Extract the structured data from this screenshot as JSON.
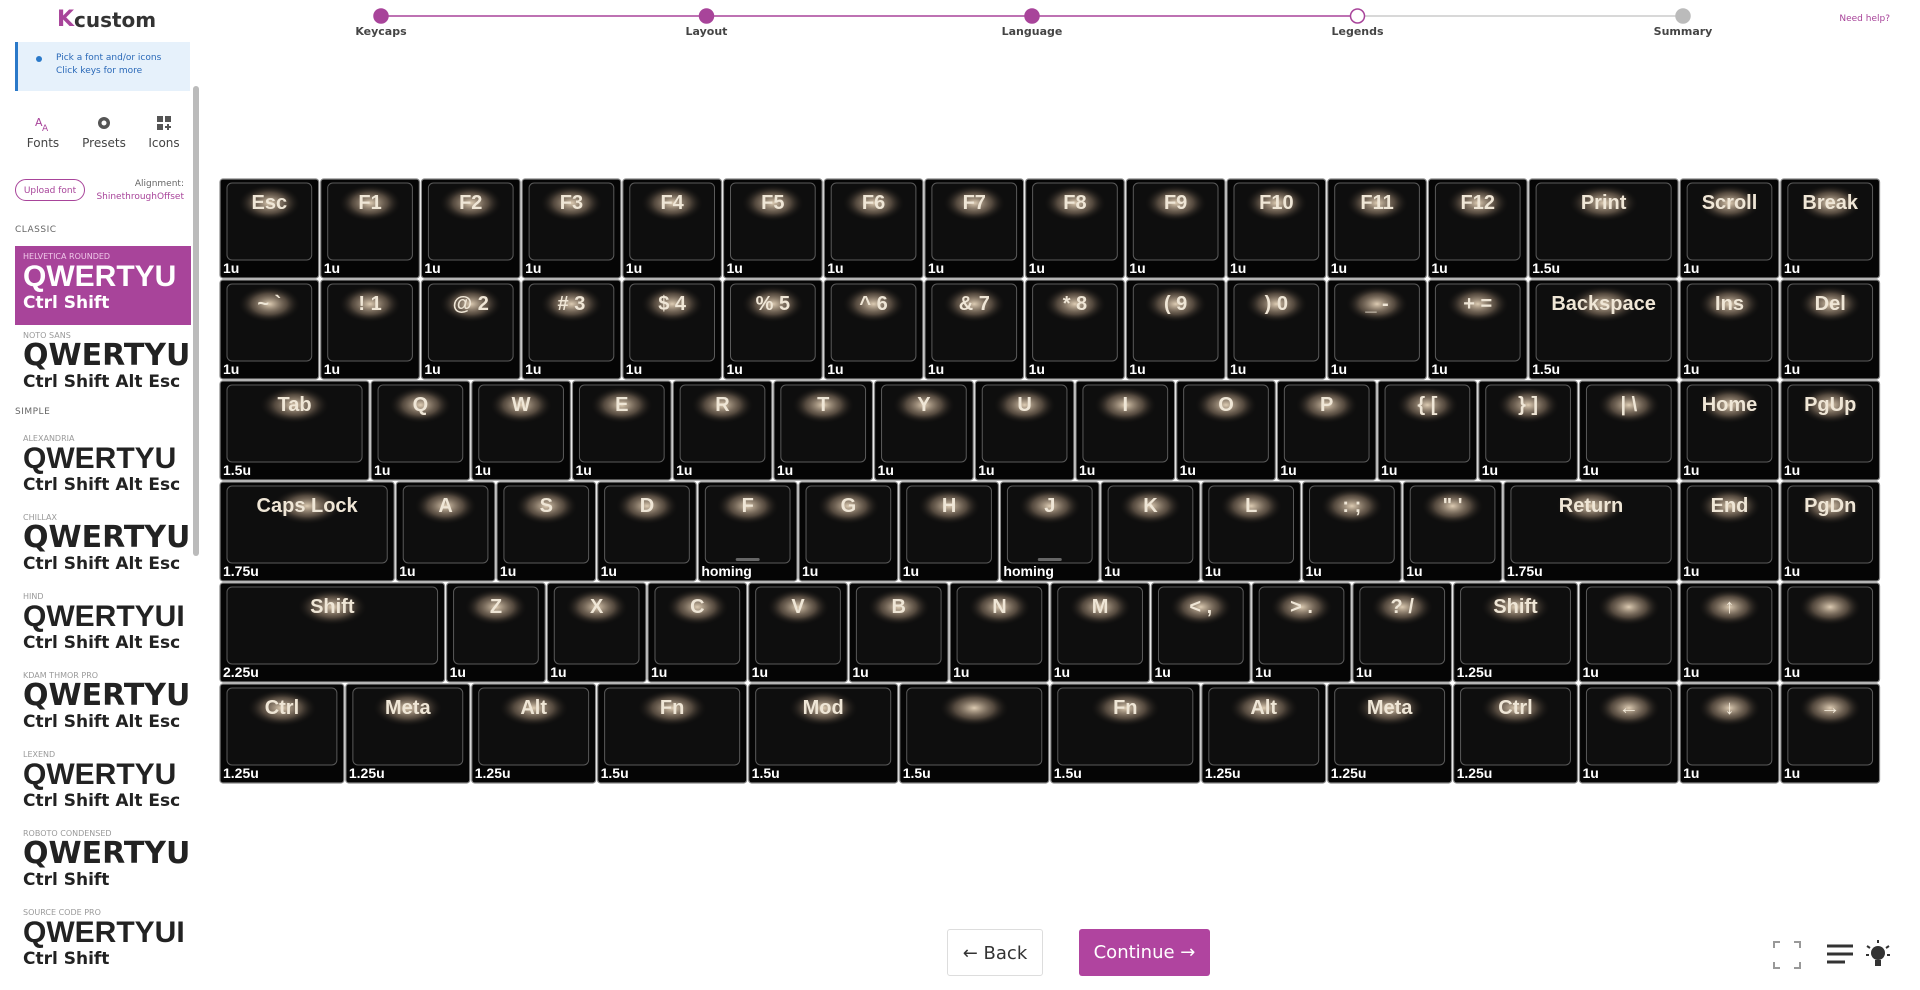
{
  "header": {
    "logo": "custom",
    "help": "Need help?",
    "steps": [
      {
        "label": "Keycaps",
        "state": "done"
      },
      {
        "label": "Layout",
        "state": "done"
      },
      {
        "label": "Language",
        "state": "done"
      },
      {
        "label": "Legends",
        "state": "current"
      },
      {
        "label": "Summary",
        "state": "todo"
      }
    ]
  },
  "sidebar": {
    "info": [
      "Pick a font and/or icons",
      "Click keys for more"
    ],
    "tabs": [
      {
        "label": "Fonts",
        "active": true
      },
      {
        "label": "Presets",
        "active": false
      },
      {
        "label": "Icons",
        "active": false
      }
    ],
    "upload": "Upload font",
    "alignment_label": "Alignment:",
    "alignment_value": "ShinethroughOffset",
    "sections": [
      {
        "title": "CLASSIC",
        "fonts": [
          {
            "name": "HELVETICA ROUNDED",
            "sample": "QWERTYU",
            "sample_small": "Ctrl Shift",
            "selected": true
          },
          {
            "name": "NOTO SANS",
            "sample": "QWERTYUI",
            "sample_small": "Ctrl Shift Alt Esc",
            "selected": false
          }
        ]
      },
      {
        "title": "SIMPLE",
        "fonts": [
          {
            "name": "ALEXANDRIA",
            "sample": "QWERTYU",
            "sample_small": "Ctrl Shift Alt Esc",
            "selected": false
          },
          {
            "name": "CHILLAX",
            "sample": "QWERTYU",
            "sample_small": "Ctrl Shift Alt Esc",
            "selected": false
          },
          {
            "name": "HIND",
            "sample": "QWERTYUI",
            "sample_small": "Ctrl Shift Alt Esc",
            "selected": false
          },
          {
            "name": "KDAM THMOR PRO",
            "sample": "QWERTYUI",
            "sample_small": "Ctrl Shift Alt Esc",
            "selected": false
          },
          {
            "name": "LEXEND",
            "sample": "QWERTYU",
            "sample_small": "Ctrl Shift Alt Esc",
            "selected": false
          },
          {
            "name": "ROBOTO CONDENSED",
            "sample": "QWERTYUIOP",
            "sample_small": "Ctrl Shift",
            "selected": false
          },
          {
            "name": "SOURCE CODE PRO",
            "sample": "QWERTYUI",
            "sample_small": "Ctrl Shift",
            "selected": false
          }
        ]
      }
    ]
  },
  "keyboard": {
    "rows": [
      [
        {
          "legend": "Esc",
          "size": "1u"
        },
        {
          "legend": "F1",
          "size": "1u"
        },
        {
          "legend": "F2",
          "size": "1u"
        },
        {
          "legend": "F3",
          "size": "1u"
        },
        {
          "legend": "F4",
          "size": "1u"
        },
        {
          "legend": "F5",
          "size": "1u"
        },
        {
          "legend": "F6",
          "size": "1u"
        },
        {
          "legend": "F7",
          "size": "1u"
        },
        {
          "legend": "F8",
          "size": "1u"
        },
        {
          "legend": "F9",
          "size": "1u"
        },
        {
          "legend": "F10",
          "size": "1u"
        },
        {
          "legend": "F11",
          "size": "1u"
        },
        {
          "legend": "F12",
          "size": "1u"
        },
        {
          "legend": "Print",
          "size": "1.5u"
        },
        {
          "legend": "Scroll",
          "size": "1u"
        },
        {
          "legend": "Break",
          "size": "1u"
        }
      ],
      [
        {
          "legend": "~ `",
          "size": "1u"
        },
        {
          "legend": "! 1",
          "size": "1u"
        },
        {
          "legend": "@ 2",
          "size": "1u"
        },
        {
          "legend": "# 3",
          "size": "1u"
        },
        {
          "legend": "$ 4",
          "size": "1u"
        },
        {
          "legend": "% 5",
          "size": "1u"
        },
        {
          "legend": "^ 6",
          "size": "1u"
        },
        {
          "legend": "& 7",
          "size": "1u"
        },
        {
          "legend": "* 8",
          "size": "1u"
        },
        {
          "legend": "( 9",
          "size": "1u"
        },
        {
          "legend": ") 0",
          "size": "1u"
        },
        {
          "legend": "_ -",
          "size": "1u"
        },
        {
          "legend": "+ =",
          "size": "1u"
        },
        {
          "legend": "Backspace",
          "size": "1.5u"
        },
        {
          "legend": "Ins",
          "size": "1u"
        },
        {
          "legend": "Del",
          "size": "1u"
        }
      ],
      [
        {
          "legend": "Tab",
          "size": "1.5u"
        },
        {
          "legend": "Q",
          "size": "1u"
        },
        {
          "legend": "W",
          "size": "1u"
        },
        {
          "legend": "E",
          "size": "1u"
        },
        {
          "legend": "R",
          "size": "1u"
        },
        {
          "legend": "T",
          "size": "1u"
        },
        {
          "legend": "Y",
          "size": "1u"
        },
        {
          "legend": "U",
          "size": "1u"
        },
        {
          "legend": "I",
          "size": "1u"
        },
        {
          "legend": "O",
          "size": "1u"
        },
        {
          "legend": "P",
          "size": "1u"
        },
        {
          "legend": "{ [",
          "size": "1u"
        },
        {
          "legend": "} ]",
          "size": "1u"
        },
        {
          "legend": "| \\",
          "size": "1u"
        },
        {
          "legend": "Home",
          "size": "1u"
        },
        {
          "legend": "PgUp",
          "size": "1u"
        }
      ],
      [
        {
          "legend": "Caps Lock",
          "size": "1.75u"
        },
        {
          "legend": "A",
          "size": "1u"
        },
        {
          "legend": "S",
          "size": "1u"
        },
        {
          "legend": "D",
          "size": "1u"
        },
        {
          "legend": "F",
          "size": "homing",
          "homing": true
        },
        {
          "legend": "G",
          "size": "1u"
        },
        {
          "legend": "H",
          "size": "1u"
        },
        {
          "legend": "J",
          "size": "homing",
          "homing": true
        },
        {
          "legend": "K",
          "size": "1u"
        },
        {
          "legend": "L",
          "size": "1u"
        },
        {
          "legend": ": ;",
          "size": "1u"
        },
        {
          "legend": "\" '",
          "size": "1u"
        },
        {
          "legend": "Return",
          "size": "1.75u"
        },
        {
          "legend": "End",
          "size": "1u"
        },
        {
          "legend": "PgDn",
          "size": "1u"
        }
      ],
      [
        {
          "legend": "Shift",
          "size": "2.25u"
        },
        {
          "legend": "Z",
          "size": "1u"
        },
        {
          "legend": "X",
          "size": "1u"
        },
        {
          "legend": "C",
          "size": "1u"
        },
        {
          "legend": "V",
          "size": "1u"
        },
        {
          "legend": "B",
          "size": "1u"
        },
        {
          "legend": "N",
          "size": "1u"
        },
        {
          "legend": "M",
          "size": "1u"
        },
        {
          "legend": "< ,",
          "size": "1u"
        },
        {
          "legend": "> .",
          "size": "1u"
        },
        {
          "legend": "? /",
          "size": "1u"
        },
        {
          "legend": "Shift",
          "size": "1.25u"
        },
        {
          "size": "1u"
        },
        {
          "legend": "↑",
          "size": "1u"
        },
        {
          "size": "1u"
        }
      ],
      [
        {
          "legend": "Ctrl",
          "size": "1.25u"
        },
        {
          "legend": "Meta",
          "size": "1.25u"
        },
        {
          "legend": "Alt",
          "size": "1.25u"
        },
        {
          "legend": "Fn",
          "size": "1.5u"
        },
        {
          "legend": "Mod",
          "size": "1.5u"
        },
        {
          "size": "1.5u"
        },
        {
          "legend": "Fn",
          "size": "1.5u"
        },
        {
          "legend": "Alt",
          "size": "1.25u"
        },
        {
          "legend": "Meta",
          "size": "1.25u"
        },
        {
          "legend": "Ctrl",
          "size": "1.25u"
        },
        {
          "legend": "←",
          "size": "1u"
        },
        {
          "legend": "↓",
          "size": "1u"
        },
        {
          "legend": "→",
          "size": "1u"
        }
      ]
    ]
  },
  "footer": {
    "back": "Back",
    "continue": "Continue"
  }
}
